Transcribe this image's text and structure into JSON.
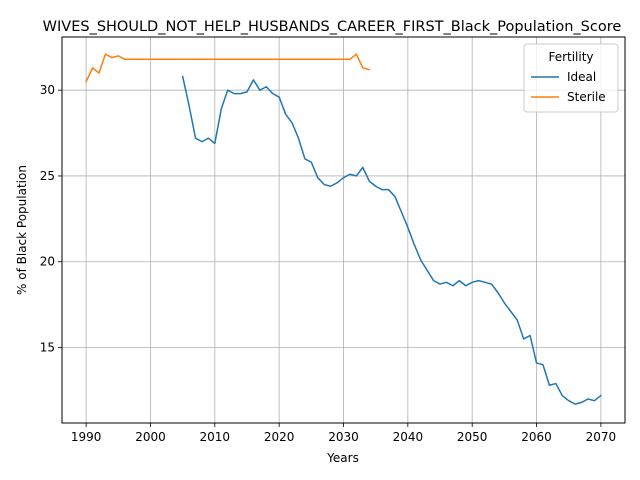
{
  "chart_data": {
    "type": "line",
    "title": "WIVES_SHOULD_NOT_HELP_HUSBANDS_CAREER_FIRST_Black_Population_Score",
    "xlabel": "Years",
    "ylabel": "% of Black Population",
    "xlim": [
      1986.25,
      2073.75
    ],
    "ylim": [
      10.6,
      33.1
    ],
    "xticks": [
      1990,
      2000,
      2010,
      2020,
      2030,
      2040,
      2050,
      2060,
      2070
    ],
    "yticks": [
      15,
      20,
      25,
      30
    ],
    "grid": true,
    "legend": {
      "title": "Fertility",
      "placement": "top-right"
    },
    "series": [
      {
        "name": "Ideal",
        "color": "#1f77b4",
        "x": [
          2005,
          2006,
          2007,
          2008,
          2009,
          2010,
          2011,
          2012,
          2013,
          2014,
          2015,
          2016,
          2017,
          2018,
          2019,
          2020,
          2021,
          2022,
          2023,
          2024,
          2025,
          2026,
          2027,
          2028,
          2029,
          2030,
          2031,
          2032,
          2033,
          2034,
          2035,
          2036,
          2037,
          2038,
          2039,
          2040,
          2041,
          2042,
          2043,
          2044,
          2045,
          2046,
          2047,
          2048,
          2049,
          2050,
          2051,
          2052,
          2053,
          2054,
          2055,
          2056,
          2057,
          2058,
          2059,
          2060,
          2061,
          2062,
          2063,
          2064,
          2065,
          2066,
          2067,
          2068,
          2069,
          2070
        ],
        "y": [
          30.8,
          29.1,
          27.2,
          27.0,
          27.2,
          26.9,
          28.9,
          30.0,
          29.8,
          29.8,
          29.9,
          30.6,
          30.0,
          30.2,
          29.8,
          29.6,
          28.6,
          28.1,
          27.2,
          26.0,
          25.8,
          24.9,
          24.5,
          24.4,
          24.6,
          24.9,
          25.1,
          25.0,
          25.5,
          24.7,
          24.4,
          24.2,
          24.2,
          23.8,
          22.9,
          22.0,
          21.0,
          20.1,
          19.5,
          18.9,
          18.7,
          18.8,
          18.6,
          18.9,
          18.6,
          18.8,
          18.9,
          18.8,
          18.7,
          18.2,
          17.6,
          17.1,
          16.6,
          15.5,
          15.7,
          14.1,
          14.0,
          12.8,
          12.9,
          12.2,
          11.9,
          11.7,
          11.8,
          12.0,
          11.9,
          12.2
        ]
      },
      {
        "name": "Sterile",
        "color": "#ff7f0e",
        "x": [
          1990,
          1991,
          1992,
          1993,
          1994,
          1995,
          1996,
          1997,
          1998,
          1999,
          2000,
          2005,
          2010,
          2015,
          2020,
          2025,
          2030,
          2031,
          2032,
          2033,
          2034
        ],
        "y": [
          30.5,
          31.3,
          31.0,
          32.1,
          31.9,
          32.0,
          31.8,
          31.8,
          31.8,
          31.8,
          31.8,
          31.8,
          31.8,
          31.8,
          31.8,
          31.8,
          31.8,
          31.8,
          32.1,
          31.3,
          31.2
        ]
      }
    ]
  }
}
